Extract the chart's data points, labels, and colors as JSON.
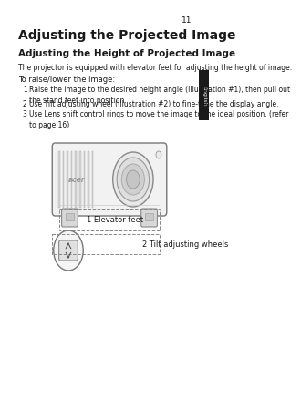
{
  "page_number": "11",
  "bg_color": "#ffffff",
  "sidebar_color": "#1a1a1a",
  "sidebar_text": "English",
  "title": "Adjusting the Projected Image",
  "subtitle": "Adjusting the Height of Projected Image",
  "body_text": "The projector is equipped with elevator feet for adjusting the height of image.",
  "instructions_header": "To raise/lower the image:",
  "instructions": [
    "Raise the image to the desired height angle (Illustration #1), then pull out\nthe stand feet into position.",
    "Use Tilt adjusting wheel (Illustration #2) to fine-tune the display angle.",
    "Use Lens shift control rings to move the image to the ideal position. (refer\nto page 16)"
  ],
  "label1": "1 Elevator feet",
  "label2": "2 Tilt adjusting wheels",
  "text_color": "#1a1a1a",
  "light_gray": "#cccccc",
  "mid_gray": "#999999",
  "dark_gray": "#666666"
}
